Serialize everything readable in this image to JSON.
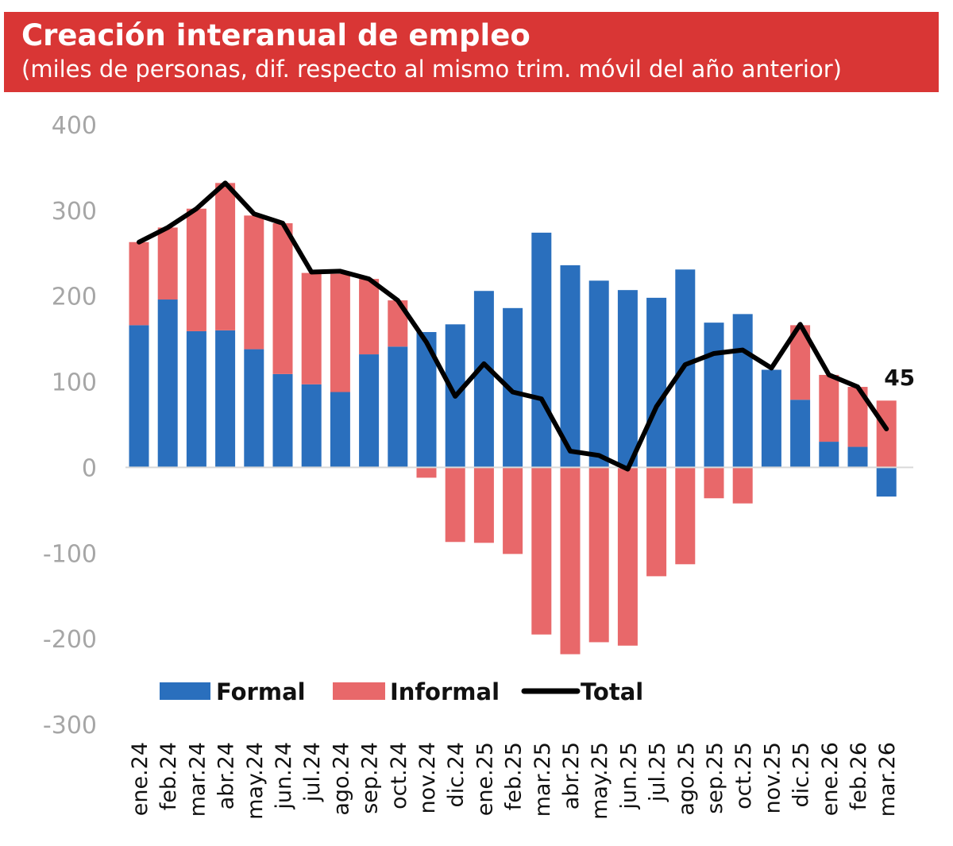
{
  "header": {
    "title": "Creación interanual de empleo",
    "subtitle": "(miles de personas, dif. respecto al mismo trim. móvil del año anterior)"
  },
  "colors": {
    "formal": "#2a6fbd",
    "informal": "#e8686a",
    "total": "#000000",
    "header_bg": "#d93635"
  },
  "chart_data": {
    "type": "bar",
    "stacked": true,
    "title": "Creación interanual de empleo",
    "subtitle": "(miles de personas, dif. respecto al mismo trim. móvil del año anterior)",
    "categories": [
      "ene.24",
      "feb.24",
      "mar.24",
      "abr.24",
      "may.24",
      "jun.24",
      "jul.24",
      "ago.24",
      "sep.24",
      "oct.24",
      "nov.24",
      "dic.24",
      "ene.25",
      "feb.25",
      "mar.25",
      "abr.25",
      "may.25",
      "jun.25",
      "jul.25",
      "ago.25",
      "sep.25",
      "oct.25",
      "nov.25",
      "dic.25",
      "ene.26",
      "feb.26",
      "mar.26"
    ],
    "series": [
      {
        "name": "Formal",
        "type": "bar",
        "values": [
          166,
          196,
          159,
          160,
          138,
          109,
          97,
          88,
          132,
          141,
          158,
          167,
          206,
          186,
          274,
          236,
          218,
          207,
          198,
          231,
          169,
          179,
          114,
          79,
          30,
          24,
          -34
        ]
      },
      {
        "name": "Informal",
        "type": "bar",
        "values": [
          97,
          84,
          143,
          172,
          156,
          176,
          130,
          138,
          88,
          54,
          -12,
          -87,
          -88,
          -101,
          -195,
          -218,
          -204,
          -208,
          -127,
          -113,
          -36,
          -42,
          0,
          87,
          78,
          70,
          78
        ]
      },
      {
        "name": "Total",
        "type": "line",
        "values": [
          263,
          280,
          302,
          332,
          296,
          285,
          228,
          229,
          220,
          195,
          146,
          83,
          121,
          88,
          80,
          19,
          14,
          -2,
          71,
          120,
          133,
          137,
          116,
          167,
          108,
          94,
          45
        ]
      }
    ],
    "ylim": [
      -300,
      400
    ],
    "yticks": [
      400,
      300,
      200,
      100,
      0,
      -100,
      -200,
      -300
    ],
    "ytick_labels": [
      "400",
      "300",
      "200",
      "100",
      "0",
      "-100",
      "-200",
      "-300"
    ],
    "legend": {
      "position": "bottom-left inside",
      "entries": [
        "Formal",
        "Informal",
        "Total"
      ]
    },
    "annotation": {
      "label": "45",
      "category": "mar.26"
    }
  }
}
